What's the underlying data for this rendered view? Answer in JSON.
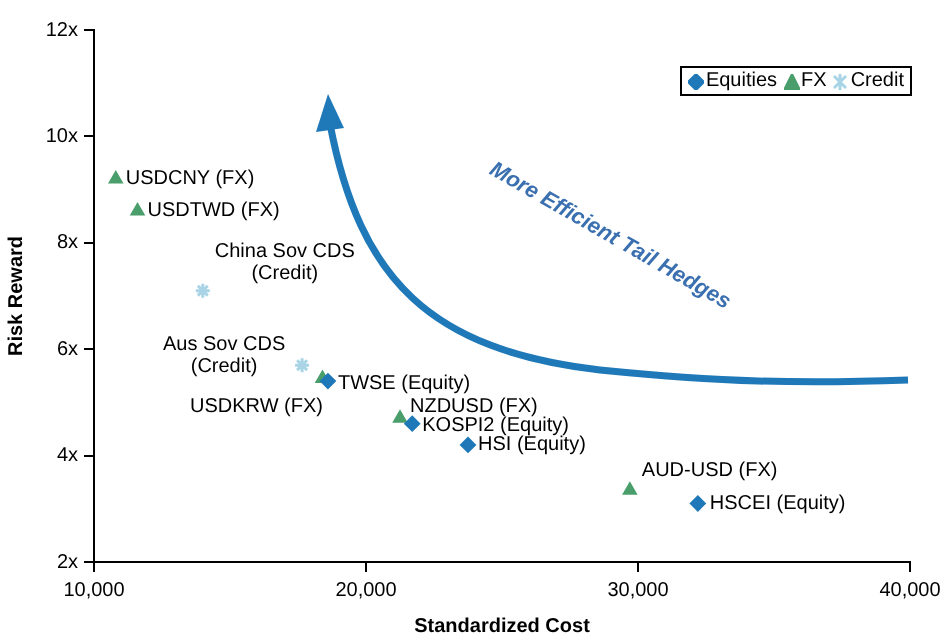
{
  "chart_data": {
    "type": "scatter",
    "xlabel": "Standardized Cost",
    "ylabel": "Risk Reward",
    "xlim": [
      10000,
      40000
    ],
    "xticks": [
      {
        "value": 10000,
        "label": "10,000"
      },
      {
        "value": 20000,
        "label": "20,000"
      },
      {
        "value": 30000,
        "label": "30,000"
      },
      {
        "value": 40000,
        "label": "40,000"
      }
    ],
    "ylim": [
      2,
      12
    ],
    "yticks": [
      {
        "value": 2,
        "label": "2x"
      },
      {
        "value": 4,
        "label": "4x"
      },
      {
        "value": 6,
        "label": "6x"
      },
      {
        "value": 8,
        "label": "8x"
      },
      {
        "value": 10,
        "label": "10x"
      },
      {
        "value": 12,
        "label": "12x"
      }
    ],
    "grid": false,
    "legend": "top right",
    "series": [
      {
        "name": "Equities",
        "color": "#1f78b8",
        "marker": "diamond",
        "x": [
          18600,
          21700,
          23750,
          32200
        ],
        "values": [
          5.4,
          4.6,
          4.2,
          3.1
        ]
      },
      {
        "name": "FX",
        "color": "#4a9e6b",
        "marker": "triangle",
        "x": [
          10800,
          11600,
          18400,
          21250,
          29700
        ],
        "values": [
          9.2,
          8.6,
          5.45,
          4.7,
          3.35
        ]
      },
      {
        "name": "Credit",
        "color": "#a8d4e6",
        "marker": "cross",
        "x": [
          14000,
          17650
        ],
        "values": [
          7.1,
          5.7
        ]
      }
    ],
    "annotations": [
      "More Efficient Tail Hedges",
      {
        "text": "USDCNY (FX)",
        "x": 10800,
        "y": 9.2
      },
      {
        "text": "USDTWD (FX)",
        "x": 11600,
        "y": 8.6
      },
      {
        "text": "China Sov CDS\n(Credit)",
        "x": 14000,
        "y": 7.1
      },
      {
        "text": "Aus Sov CDS\n(Credit)",
        "x": 17650,
        "y": 5.7
      },
      {
        "text": "USDKRW (FX)",
        "x": 18400,
        "y": 5.45
      },
      {
        "text": "TWSE (Equity)",
        "x": 18600,
        "y": 5.4
      },
      {
        "text": "NZDUSD (FX)",
        "x": 21250,
        "y": 4.7
      },
      {
        "text": "KOSPI2 (Equity)",
        "x": 21700,
        "y": 4.6
      },
      {
        "text": "HSI (Equity)",
        "x": 23750,
        "y": 4.2
      },
      {
        "text": "AUD-USD (FX)",
        "x": 29700,
        "y": 3.35
      },
      {
        "text": "HSCEI (Equity)",
        "x": 32200,
        "y": 3.1
      }
    ]
  }
}
